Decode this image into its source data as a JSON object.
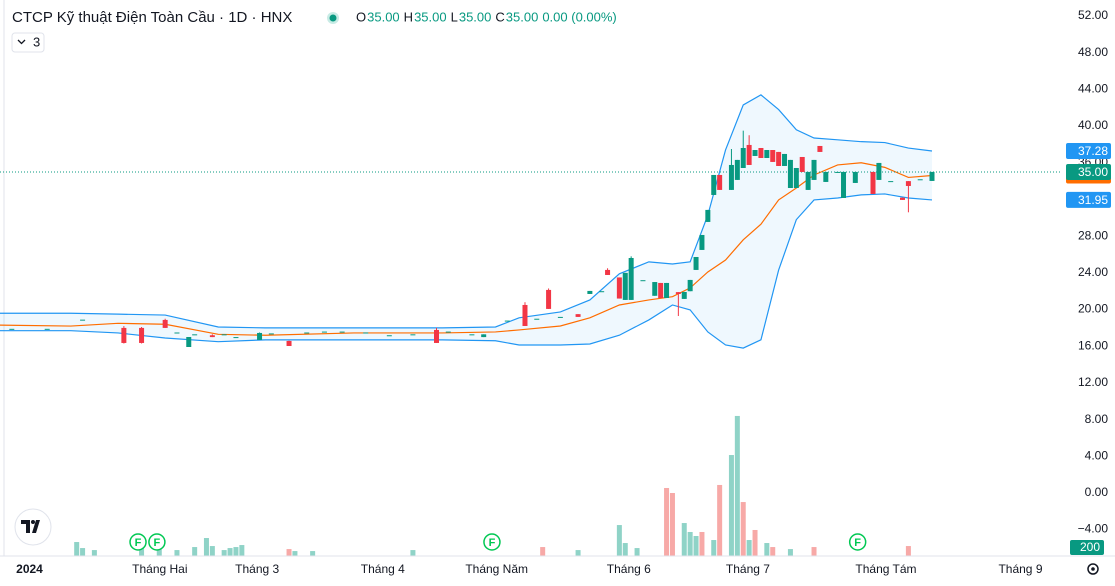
{
  "chart_data": {
    "type": "candlestick",
    "title": "CTCP Kỹ thuật Điện Toàn Cầu · 1D · HNX",
    "indicator_count": "3",
    "ohlc_legend": [
      {
        "key": "O",
        "value": "35.00"
      },
      {
        "key": "H",
        "value": "35.00"
      },
      {
        "key": "L",
        "value": "35.00"
      },
      {
        "key": "C",
        "value": "35.00"
      }
    ],
    "change": "0.00 (0.00%)",
    "up_color": "#089981",
    "down_color": "#f23645",
    "xlim": [
      0,
      179.7
    ],
    "xticks": [
      {
        "value": 5,
        "label": "2024"
      },
      {
        "value": 27.1,
        "label": "Tháng Hai"
      },
      {
        "value": 43.6,
        "label": "Tháng 3"
      },
      {
        "value": 64.9,
        "label": "Tháng 4"
      },
      {
        "value": 84.2,
        "label": "Tháng Năm"
      },
      {
        "value": 106.6,
        "label": "Tháng 6"
      },
      {
        "value": 126.8,
        "label": "Tháng 7"
      },
      {
        "value": 150.2,
        "label": "Tháng Tám"
      },
      {
        "value": 173,
        "label": "Tháng 9"
      }
    ],
    "ylim": [
      -6.86,
      53.74
    ],
    "yticks": [
      {
        "value": 12,
        "label": "12.00"
      },
      {
        "value": 16,
        "label": "16.00"
      },
      {
        "value": 20,
        "label": "20.00"
      },
      {
        "value": 24,
        "label": "24.00"
      },
      {
        "value": 28,
        "label": "28.00"
      },
      {
        "value": 36,
        "label": "36.00"
      },
      {
        "value": 40,
        "label": "40.00"
      },
      {
        "value": 44,
        "label": "44.00"
      },
      {
        "value": 48,
        "label": "48.00"
      },
      {
        "value": 52,
        "label": "52.00"
      }
    ],
    "candles": {
      "x": [
        2,
        8,
        14,
        21,
        24,
        28,
        30,
        32,
        33,
        36,
        38,
        40,
        44,
        46,
        49,
        52,
        55,
        58,
        62,
        66,
        70,
        74,
        76,
        80,
        82,
        86,
        89,
        91,
        93,
        95,
        98,
        100,
        102,
        103,
        105,
        106,
        107,
        109,
        111,
        112,
        113,
        115,
        116,
        117,
        118,
        119,
        120,
        121,
        122,
        124,
        125,
        126,
        127,
        128,
        129,
        130,
        131,
        132,
        133,
        134,
        135,
        136,
        137,
        138,
        139,
        140,
        142,
        143,
        145,
        148,
        149,
        151,
        153,
        154,
        156,
        158
      ],
      "open": [
        17.9,
        17.9,
        18.9,
        18.0,
        18.0,
        18.87,
        17.5,
        15.92,
        17.3,
        17.2,
        17.3,
        17.0,
        16.69,
        17.4,
        16.58,
        17.5,
        17.6,
        17.6,
        17.5,
        17.2,
        17.3,
        17.78,
        17.6,
        17.3,
        17.0,
        18.8,
        20.5,
        19.0,
        22.14,
        19.2,
        19.5,
        21.7,
        22.0,
        24.32,
        23.5,
        21.05,
        21.05,
        23.2,
        21.5,
        22.9,
        21.26,
        21.9,
        21.16,
        22.0,
        24.32,
        26.5,
        29.55,
        32.49,
        34.67,
        33.04,
        34.13,
        35.43,
        37.94,
        36.74,
        37.61,
        36.52,
        37.39,
        37.18,
        35.65,
        33.25,
        33.25,
        36.63,
        33.04,
        34.13,
        37.83,
        33.91,
        35.0,
        32.16,
        33.8,
        35.0,
        34.13,
        34.0,
        32.2,
        34.0,
        34.2,
        34.02
      ],
      "high": [
        17.9,
        17.9,
        18.9,
        18.2,
        18.1,
        19.0,
        17.5,
        17.01,
        17.3,
        17.3,
        17.3,
        17.0,
        17.5,
        17.4,
        16.6,
        17.5,
        17.6,
        17.6,
        17.5,
        17.2,
        17.3,
        18.0,
        17.6,
        17.3,
        17.3,
        18.8,
        20.8,
        19.0,
        22.3,
        19.2,
        19.5,
        22.03,
        22.0,
        24.5,
        23.5,
        24.0,
        25.8,
        23.2,
        23.0,
        22.9,
        22.9,
        21.9,
        21.92,
        23.23,
        25.73,
        28.13,
        30.86,
        34.67,
        34.67,
        37.5,
        36.31,
        39.5,
        39.0,
        37.39,
        37.61,
        37.39,
        37.39,
        37.18,
        36.96,
        36.31,
        35.43,
        36.63,
        35.0,
        36.31,
        37.83,
        35.0,
        35.0,
        35.0,
        35.0,
        35.0,
        35.98,
        34.0,
        32.2,
        34.0,
        34.2,
        35.0
      ],
      "low": [
        17.9,
        17.9,
        18.9,
        16.3,
        16.3,
        18.0,
        17.5,
        15.92,
        17.3,
        17.0,
        17.3,
        17.0,
        16.69,
        17.4,
        16.03,
        17.5,
        17.6,
        17.6,
        17.5,
        17.2,
        17.3,
        16.36,
        17.6,
        17.3,
        17.0,
        18.8,
        18.21,
        19.0,
        20.07,
        19.2,
        19.2,
        21.7,
        22.0,
        23.77,
        21.2,
        21.05,
        21.05,
        23.2,
        21.5,
        21.26,
        21.26,
        19.3,
        21.16,
        22.0,
        24.32,
        26.5,
        29.55,
        32.49,
        33.04,
        33.04,
        34.13,
        35.43,
        35.76,
        36.74,
        36.52,
        36.52,
        36.09,
        35.65,
        35.65,
        33.25,
        33.25,
        35.0,
        33.04,
        34.13,
        37.18,
        33.91,
        35.0,
        32.16,
        33.8,
        32.6,
        34.13,
        34.0,
        31.95,
        30.6,
        34.2,
        34.02
      ],
      "close": [
        17.9,
        17.9,
        18.9,
        16.36,
        16.36,
        18.0,
        17.5,
        17.01,
        17.3,
        17.0,
        17.3,
        17.0,
        17.45,
        17.4,
        16.03,
        17.5,
        17.6,
        17.6,
        17.5,
        17.2,
        17.3,
        16.36,
        17.6,
        17.3,
        17.3,
        18.8,
        18.21,
        19.0,
        20.07,
        19.2,
        19.2,
        22.03,
        22.0,
        23.77,
        21.2,
        24.0,
        25.62,
        23.2,
        23.0,
        21.26,
        22.9,
        21.7,
        21.92,
        23.23,
        25.73,
        28.13,
        30.86,
        34.67,
        33.04,
        35.76,
        36.31,
        37.61,
        35.76,
        37.39,
        36.52,
        37.39,
        36.09,
        35.65,
        36.96,
        36.31,
        35.43,
        35.0,
        35.0,
        36.31,
        37.18,
        35.0,
        35.0,
        35.0,
        35.0,
        32.6,
        35.98,
        34.0,
        31.95,
        33.47,
        34.2,
        35.0
      ]
    },
    "last_price": {
      "value": 35,
      "label": "35.00"
    },
    "bollinger": {
      "x": [
        0,
        12,
        20,
        28,
        37,
        45,
        60,
        75,
        84,
        88,
        95,
        100,
        105,
        110,
        114,
        117,
        120,
        123,
        126,
        129,
        132,
        135,
        138,
        142,
        146,
        150,
        154,
        158
      ],
      "upper": [
        19.6,
        19.6,
        19.5,
        19.4,
        18.1,
        18.0,
        18.0,
        18.0,
        18.1,
        19.1,
        19.74,
        21.05,
        23.9,
        25.2,
        24.97,
        25.2,
        30.3,
        37.4,
        42.3,
        43.4,
        41.8,
        39.6,
        38.7,
        38.5,
        38.3,
        38.2,
        37.6,
        37.28
      ],
      "middle": [
        18.3,
        18.2,
        18.5,
        18.4,
        17.3,
        17.2,
        17.45,
        17.45,
        17.56,
        17.78,
        18.21,
        19.1,
        20.5,
        21.05,
        21.4,
        22.36,
        24.1,
        25.4,
        27.6,
        29.3,
        31.95,
        33.25,
        34.67,
        35.76,
        36.0,
        35.5,
        34.4,
        34.61
      ],
      "lower": [
        17.7,
        17.7,
        17.45,
        16.9,
        16.5,
        16.7,
        16.7,
        16.7,
        16.6,
        16.14,
        16.14,
        16.25,
        17.2,
        18.87,
        20.5,
        19.96,
        17.56,
        16.14,
        15.8,
        16.7,
        24.3,
        29.8,
        31.95,
        32.16,
        32.5,
        32.6,
        32.16,
        31.95
      ],
      "upper_color": "#2196f3",
      "middle_color": "#ff6d00",
      "fill": "#2196f3"
    },
    "volume": {
      "ylim": [
        -6.9,
        54
      ],
      "yticks": [
        {
          "value": 8,
          "label": "8.00"
        },
        {
          "value": 4,
          "label": "4.00"
        },
        {
          "value": 0,
          "label": "0.00"
        },
        {
          "value": -4,
          "label": "−4.00"
        }
      ],
      "x": [
        13,
        14,
        16,
        24,
        27,
        30,
        33,
        35,
        36,
        38,
        39,
        40,
        41,
        49,
        50,
        53,
        70,
        92,
        98,
        105,
        106,
        108,
        113,
        114,
        116,
        117,
        118,
        119,
        121,
        122,
        124,
        125,
        126,
        127,
        128,
        130,
        131,
        134,
        138,
        154
      ],
      "values": [
        -5.37,
        -6.03,
        -6.25,
        -5.7,
        -6.03,
        -6.25,
        -5.92,
        -4.93,
        -5.81,
        -6.25,
        -6.03,
        -5.92,
        -5.7,
        -6.14,
        -6.36,
        -6.36,
        -6.25,
        -5.92,
        -6.25,
        -3.51,
        -5.48,
        -6.03,
        0.55,
        0,
        -3.29,
        -4.27,
        -4.71,
        -4.27,
        -5.15,
        0.88,
        4.16,
        8.44,
        -0.99,
        -5.15,
        -4.05,
        -5.48,
        -5.92,
        -6.14,
        -5.92,
        -5.81
      ],
      "colors": [
        "#8fd3c7",
        "#8fd3c7",
        "#8fd3c7",
        "#8fd3c7",
        "#8fd3c7",
        "#8fd3c7",
        "#8fd3c7",
        "#8fd3c7",
        "#8fd3c7",
        "#8fd3c7",
        "#8fd3c7",
        "#8fd3c7",
        "#8fd3c7",
        "#f7a9a7",
        "#8fd3c7",
        "#8fd3c7",
        "#8fd3c7",
        "#f7a9a7",
        "#8fd3c7",
        "#8fd3c7",
        "#8fd3c7",
        "#8fd3c7",
        "#f7a9a7",
        "#f7a9a7",
        "#8fd3c7",
        "#8fd3c7",
        "#8fd3c7",
        "#f7a9a7",
        "#8fd3c7",
        "#f7a9a7",
        "#8fd3c7",
        "#8fd3c7",
        "#f7a9a7",
        "#8fd3c7",
        "#f7a9a7",
        "#8fd3c7",
        "#f7a9a7",
        "#8fd3c7",
        "#f7a9a7",
        "#f7a9a7"
      ],
      "last_label": 200
    },
    "events": {
      "x": [
        23.4,
        26.6,
        83.4,
        145.4
      ],
      "labels": [
        "F",
        "F",
        "F",
        "F"
      ]
    }
  }
}
